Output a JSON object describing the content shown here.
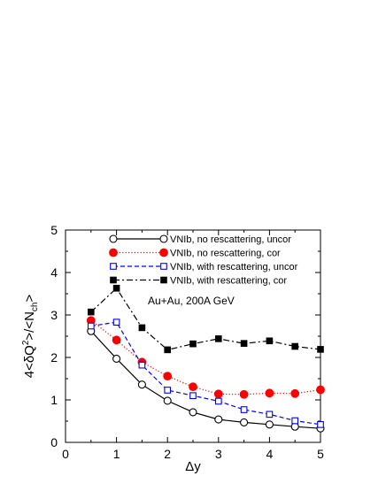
{
  "chart_data": {
    "type": "line",
    "xlabel": "Δy",
    "ylabel": "4<δQ²>/<N_ch>",
    "xlim": [
      0,
      5
    ],
    "ylim": [
      0,
      5
    ],
    "xticks": [
      "0",
      "1",
      "2",
      "3",
      "4",
      "5"
    ],
    "yticks": [
      "0",
      "1",
      "2",
      "3",
      "4",
      "5"
    ],
    "grid": false,
    "legend_position": "top",
    "annotation": "Au+Au, 200A GeV",
    "x": [
      0.5,
      1.0,
      1.5,
      2.0,
      2.5,
      3.0,
      3.5,
      4.0,
      4.5,
      5.0
    ],
    "series": [
      {
        "name": "VNIb, no rescattering, uncor",
        "color": "#000000",
        "marker": "open-circle",
        "linestyle": "solid",
        "values": [
          2.62,
          1.97,
          1.36,
          0.98,
          0.71,
          0.54,
          0.47,
          0.42,
          0.37,
          0.33
        ]
      },
      {
        "name": "VNIb, no rescattering, cor",
        "color": "#ff0000",
        "marker": "filled-circle",
        "linestyle": "dotted",
        "values": [
          2.87,
          2.41,
          1.89,
          1.56,
          1.31,
          1.14,
          1.13,
          1.16,
          1.15,
          1.24
        ]
      },
      {
        "name": "VNIb, with rescattering, uncor",
        "color": "#0000ff",
        "marker": "open-square",
        "linestyle": "dashed",
        "values": [
          2.74,
          2.83,
          1.82,
          1.23,
          1.1,
          0.97,
          0.77,
          0.66,
          0.51,
          0.42
        ]
      },
      {
        "name": "VNIb, with rescattering, cor",
        "color": "#000000",
        "marker": "filled-square",
        "linestyle": "dashdot",
        "values": [
          3.07,
          3.63,
          2.7,
          2.18,
          2.32,
          2.44,
          2.33,
          2.39,
          2.26,
          2.19
        ]
      }
    ]
  }
}
